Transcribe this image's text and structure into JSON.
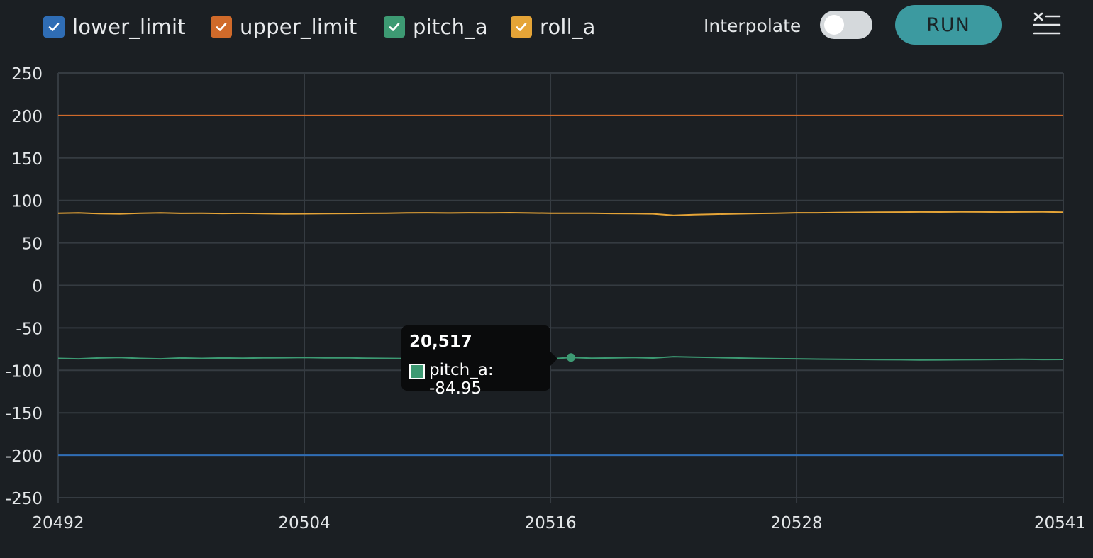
{
  "toolbar": {
    "legend": [
      {
        "label": "lower_limit",
        "color": "#2f6db5",
        "checked": true
      },
      {
        "label": "upper_limit",
        "color": "#d06a2a",
        "checked": true
      },
      {
        "label": "pitch_a",
        "color": "#3d9a73",
        "checked": true
      },
      {
        "label": "roll_a",
        "color": "#e5a437",
        "checked": true
      }
    ],
    "interpolate_label": "Interpolate",
    "interpolate_on": false,
    "run_label": "RUN",
    "clear_icon": "clear-list-icon"
  },
  "tooltip": {
    "title": "20,517",
    "series_label": "pitch_a: -84.95",
    "series_color": "#3d9a73"
  },
  "chart_data": {
    "type": "line",
    "xlim": [
      20492,
      20541
    ],
    "ylim": [
      -250,
      250
    ],
    "x_ticks": [
      "20492",
      "20504",
      "20516",
      "20528",
      "20541"
    ],
    "x_tick_values": [
      20492,
      20504,
      20516,
      20528,
      20541
    ],
    "y_ticks": [
      "250",
      "200",
      "150",
      "100",
      "50",
      "0",
      "-50",
      "-100",
      "-150",
      "-200",
      "-250"
    ],
    "y_tick_values": [
      250,
      200,
      150,
      100,
      50,
      0,
      -50,
      -100,
      -150,
      -200,
      -250
    ],
    "grid": true,
    "x": [
      20492,
      20493,
      20494,
      20495,
      20496,
      20497,
      20498,
      20499,
      20500,
      20501,
      20502,
      20503,
      20504,
      20505,
      20506,
      20507,
      20508,
      20509,
      20510,
      20511,
      20512,
      20513,
      20514,
      20515,
      20516,
      20517,
      20518,
      20519,
      20520,
      20521,
      20522,
      20523,
      20524,
      20525,
      20526,
      20527,
      20528,
      20529,
      20530,
      20531,
      20532,
      20533,
      20534,
      20535,
      20536,
      20537,
      20538,
      20539,
      20540,
      20541
    ],
    "series": [
      {
        "name": "lower_limit",
        "color": "#2f6db5",
        "values": [
          -200,
          -200,
          -200,
          -200,
          -200,
          -200,
          -200,
          -200,
          -200,
          -200,
          -200,
          -200,
          -200,
          -200,
          -200,
          -200,
          -200,
          -200,
          -200,
          -200,
          -200,
          -200,
          -200,
          -200,
          -200,
          -200,
          -200,
          -200,
          -200,
          -200,
          -200,
          -200,
          -200,
          -200,
          -200,
          -200,
          -200,
          -200,
          -200,
          -200,
          -200,
          -200,
          -200,
          -200,
          -200,
          -200,
          -200,
          -200,
          -200,
          -200
        ]
      },
      {
        "name": "upper_limit",
        "color": "#d06a2a",
        "values": [
          200,
          200,
          200,
          200,
          200,
          200,
          200,
          200,
          200,
          200,
          200,
          200,
          200,
          200,
          200,
          200,
          200,
          200,
          200,
          200,
          200,
          200,
          200,
          200,
          200,
          200,
          200,
          200,
          200,
          200,
          200,
          200,
          200,
          200,
          200,
          200,
          200,
          200,
          200,
          200,
          200,
          200,
          200,
          200,
          200,
          200,
          200,
          200,
          200,
          200
        ]
      },
      {
        "name": "pitch_a",
        "color": "#3d9a73",
        "values": [
          -86,
          -86.5,
          -85.5,
          -85,
          -86,
          -86.5,
          -85.5,
          -86,
          -85.5,
          -85.8,
          -85.4,
          -85.2,
          -85,
          -85.4,
          -85.2,
          -85.8,
          -86,
          -86.2,
          -85.8,
          -86,
          -86.3,
          -86,
          -86.1,
          -86.4,
          -86.5,
          -84.95,
          -85.8,
          -85.5,
          -85,
          -85.6,
          -84,
          -84.5,
          -85,
          -85.5,
          -86,
          -86.3,
          -86.5,
          -86.8,
          -87,
          -87.2,
          -87.5,
          -87.6,
          -87.8,
          -87.7,
          -87.6,
          -87.5,
          -87.2,
          -87,
          -87.3,
          -87.2
        ]
      },
      {
        "name": "roll_a",
        "color": "#e5a437",
        "values": [
          85,
          85.3,
          84.5,
          84.2,
          85,
          85.3,
          84.8,
          85,
          84.6,
          84.8,
          84.5,
          84.2,
          84.3,
          84.5,
          84.6,
          84.8,
          85,
          85.3,
          85.5,
          85.2,
          85.5,
          85.3,
          85.6,
          85.2,
          85,
          84.9,
          85,
          84.6,
          84.5,
          84.2,
          82.5,
          83.2,
          83.8,
          84.2,
          84.6,
          85,
          85.5,
          85.5,
          85.8,
          86,
          86.2,
          86.3,
          86.5,
          86.4,
          86.6,
          86.5,
          86.3,
          86.5,
          86.6,
          86.2
        ]
      }
    ],
    "highlight": {
      "series": "pitch_a",
      "x": 20517,
      "y": -84.95
    }
  }
}
